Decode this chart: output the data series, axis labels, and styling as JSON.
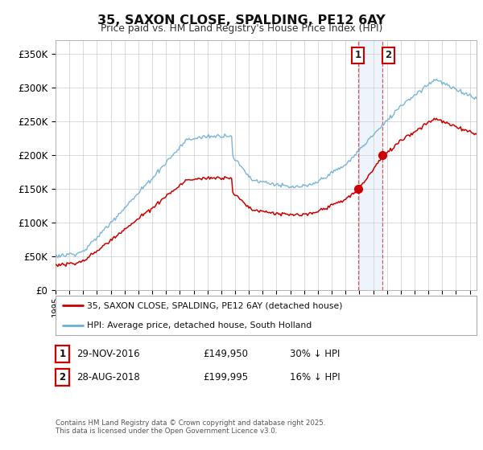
{
  "title": "35, SAXON CLOSE, SPALDING, PE12 6AY",
  "subtitle": "Price paid vs. HM Land Registry's House Price Index (HPI)",
  "ylabel_ticks": [
    "£0",
    "£50K",
    "£100K",
    "£150K",
    "£200K",
    "£250K",
    "£300K",
    "£350K"
  ],
  "ylim": [
    0,
    370000
  ],
  "xlim_start": 1995.0,
  "xlim_end": 2025.5,
  "hpi_color": "#6baed6",
  "price_color": "#cc0000",
  "marker1_x": 2016.91,
  "marker2_x": 2018.66,
  "marker1_price": 149950,
  "marker2_price": 199995,
  "legend_label1": "35, SAXON CLOSE, SPALDING, PE12 6AY (detached house)",
  "legend_label2": "HPI: Average price, detached house, South Holland",
  "table_row1": [
    "1",
    "29-NOV-2016",
    "£149,950",
    "30% ↓ HPI"
  ],
  "table_row2": [
    "2",
    "28-AUG-2018",
    "£199,995",
    "16% ↓ HPI"
  ],
  "footnote": "Contains HM Land Registry data © Crown copyright and database right 2025.\nThis data is licensed under the Open Government Licence v3.0.",
  "bg_color": "#ffffff",
  "plot_bg_color": "#ffffff",
  "grid_color": "#cccccc",
  "shade_color": "#cce0f5"
}
